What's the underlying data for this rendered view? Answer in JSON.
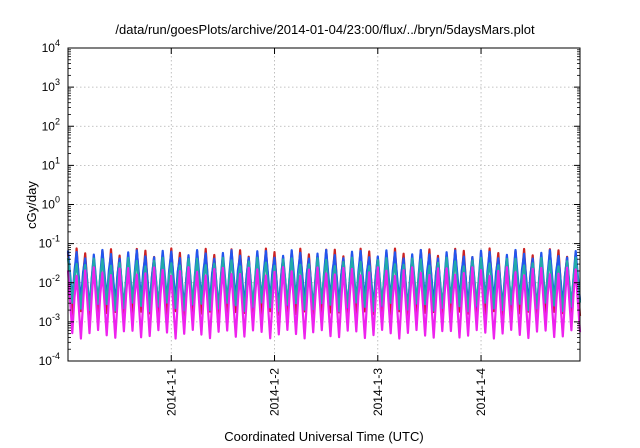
{
  "chart_data": {
    "type": "line",
    "title": "/data/run/goesPlots/archive/2014-01-04/23:00/flux/../bryn/5daysMars.plot",
    "xlabel": "Coordinated Universal Time (UTC)",
    "ylabel": "cGy/day",
    "yscale": "log",
    "ylim": [
      0.0001,
      10000
    ],
    "y_ticks": [
      {
        "base": "10",
        "exp": "-4",
        "value": 0.0001
      },
      {
        "base": "10",
        "exp": "-3",
        "value": 0.001
      },
      {
        "base": "10",
        "exp": "-2",
        "value": 0.01
      },
      {
        "base": "10",
        "exp": "-1",
        "value": 0.1
      },
      {
        "base": "10",
        "exp": "0",
        "value": 1
      },
      {
        "base": "10",
        "exp": "1",
        "value": 10
      },
      {
        "base": "10",
        "exp": "2",
        "value": 100
      },
      {
        "base": "10",
        "exp": "3",
        "value": 1000
      },
      {
        "base": "10",
        "exp": "4",
        "value": 10000
      }
    ],
    "x_ticks": [
      "2014-1-1",
      "2014-1-2",
      "2014-1-3",
      "2014-1-4"
    ],
    "xlim": [
      "2013-12-31T00:00",
      "2014-01-04T23:00"
    ],
    "grid": true,
    "legend": "none",
    "cycle_hours": 2,
    "series": [
      {
        "color": "#cc2222",
        "peak": 0.06,
        "trough": 0.0015
      },
      {
        "color": "#2255ee",
        "peak": 0.055,
        "trough": 0.003
      },
      {
        "color": "#22aaaa",
        "peak": 0.035,
        "trough": 0.0025
      },
      {
        "color": "#ee22ee",
        "peak": 0.02,
        "trough": 0.0005
      }
    ]
  }
}
